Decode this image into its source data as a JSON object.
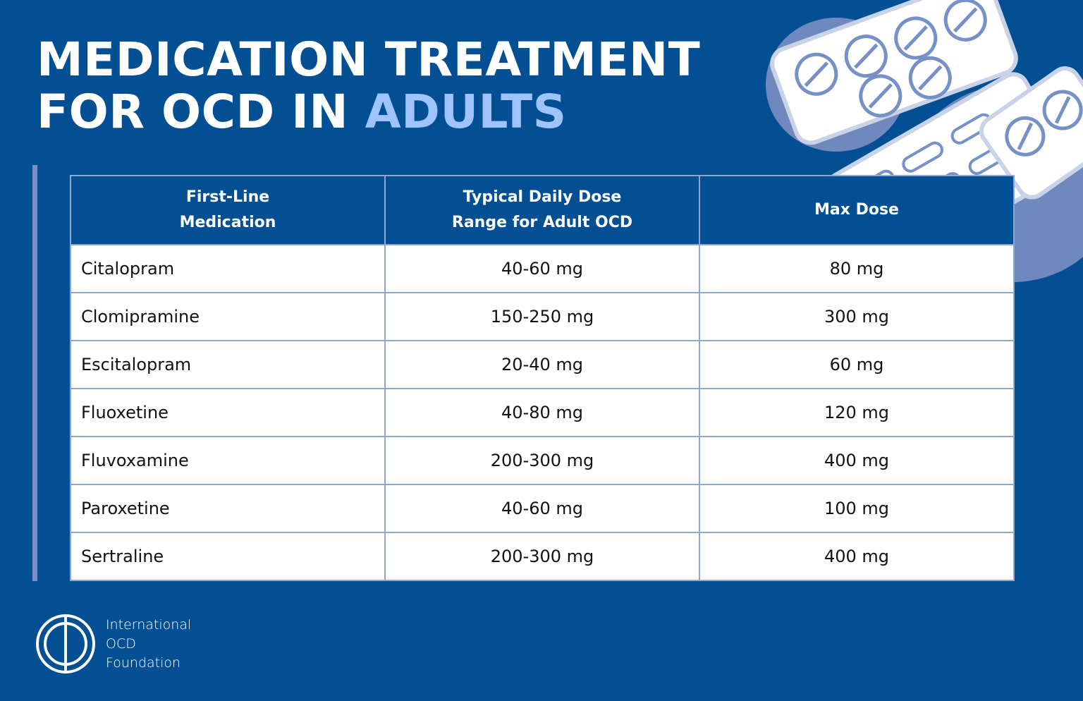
{
  "title": {
    "line1": "MEDICATION TREATMENT",
    "line2_prefix": "FOR OCD IN ",
    "line2_accent": "ADULTS"
  },
  "table": {
    "headers": [
      "First-Line Medication",
      "Typical Daily Dose Range for Adult OCD",
      "Max Dose"
    ],
    "header_lines": [
      [
        "First-Line",
        "Medication"
      ],
      [
        "Typical Daily Dose",
        "Range for Adult OCD"
      ],
      [
        "Max Dose"
      ]
    ],
    "rows": [
      {
        "name": "Citalopram",
        "range": "40-60 mg",
        "max": "80 mg"
      },
      {
        "name": "Clomipramine",
        "range": "150-250 mg",
        "max": "300 mg"
      },
      {
        "name": "Escitalopram",
        "range": "20-40 mg",
        "max": "60 mg"
      },
      {
        "name": "Fluoxetine",
        "range": "40-80 mg",
        "max": "120 mg"
      },
      {
        "name": "Fluvoxamine",
        "range": "200-300 mg",
        "max": "400 mg"
      },
      {
        "name": "Paroxetine",
        "range": "40-60 mg",
        "max": "100 mg"
      },
      {
        "name": "Sertraline",
        "range": "200-300 mg",
        "max": "400 mg"
      }
    ]
  },
  "logo": {
    "lines": [
      "International",
      "OCD",
      "Foundation"
    ]
  },
  "colors": {
    "background": "#034f93",
    "accent": "#9ec3ff",
    "table_border": "#8da8cf",
    "side_bar": "#7790c6"
  },
  "decoration": "pill-blister-packs"
}
